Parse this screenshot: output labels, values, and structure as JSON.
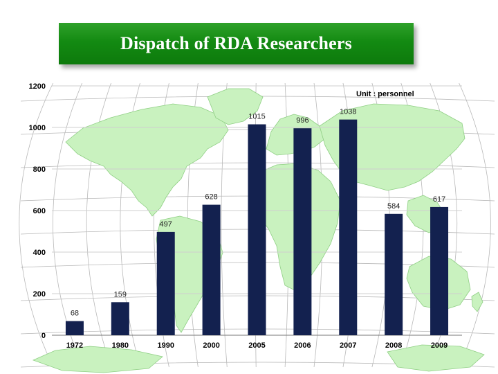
{
  "chart_data": {
    "type": "bar",
    "title": "Dispatch of RDA Researchers",
    "unit_note": "Unit : personnel",
    "categories": [
      "1972",
      "1980",
      "1990",
      "2000",
      "2005",
      "2006",
      "2007",
      "2008",
      "2009"
    ],
    "values": [
      68,
      159,
      497,
      628,
      1015,
      996,
      1038,
      584,
      617
    ],
    "ylim": [
      0,
      1200
    ],
    "yticks": [
      0,
      200,
      400,
      600,
      800,
      1000,
      1200
    ],
    "grid": true,
    "bar_color": "#13214f",
    "background": "world map"
  }
}
